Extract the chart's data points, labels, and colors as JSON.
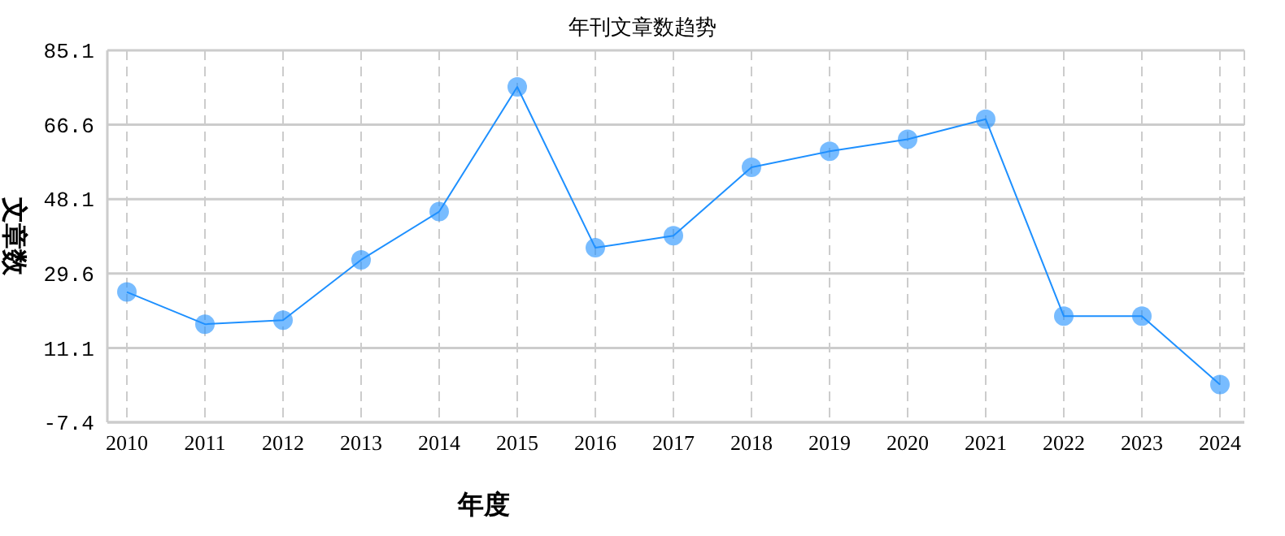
{
  "chart_data": {
    "type": "line",
    "title": "年刊文章数趋势",
    "xlabel": "年度",
    "ylabel": "文章数",
    "categories": [
      "2010",
      "2011",
      "2012",
      "2013",
      "2014",
      "2015",
      "2016",
      "2017",
      "2018",
      "2019",
      "2020",
      "2021",
      "2022",
      "2023",
      "2024"
    ],
    "series": [
      {
        "color": "#1e90ff",
        "values": [
          25,
          17,
          18,
          33,
          45,
          76,
          36,
          39,
          56,
          60,
          63,
          68,
          19,
          19,
          2
        ]
      }
    ],
    "ylim": [
      -7.4,
      85.1
    ],
    "yticks": [
      -7.4,
      11.1,
      29.6,
      48.1,
      66.6,
      85.1
    ],
    "grid": true,
    "legend": false,
    "marker": "circle",
    "line_style": "solid"
  }
}
